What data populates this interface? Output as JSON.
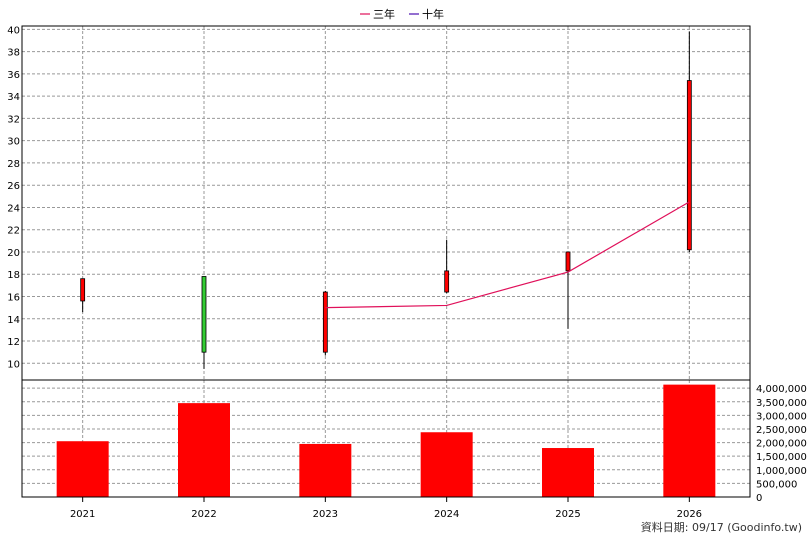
{
  "legend": [
    {
      "label": "三年",
      "color": "#e0105a"
    },
    {
      "label": "十年",
      "color": "#4b0fb0"
    }
  ],
  "footer": "資料日期: 09/17  (Goodinfo.tw)",
  "chart_data": [
    {
      "type": "candlestick",
      "categories": [
        "2021",
        "2022",
        "2023",
        "2024",
        "2025",
        "2026"
      ],
      "ohlc": [
        {
          "year": "2021",
          "open": 15.6,
          "high": 17.6,
          "low": 14.6,
          "close": 17.6
        },
        {
          "year": "2022",
          "open": 17.8,
          "high": 17.8,
          "low": 9.5,
          "close": 11.0
        },
        {
          "year": "2023",
          "open": 11.0,
          "high": 16.5,
          "low": 10.7,
          "close": 16.4
        },
        {
          "year": "2024",
          "open": 16.4,
          "high": 21.1,
          "low": 16.3,
          "close": 18.3
        },
        {
          "year": "2025",
          "open": 18.3,
          "high": 20.0,
          "low": 13.1,
          "close": 20.0
        },
        {
          "year": "2026",
          "open": 20.2,
          "high": 39.8,
          "low": 20.0,
          "close": 35.4
        }
      ],
      "up_color": "#ff0000",
      "down_color": "#33cc33",
      "series": [
        {
          "name": "三年",
          "x": [
            "2023",
            "2024",
            "2025",
            "2026"
          ],
          "values": [
            15.0,
            15.2,
            18.2,
            24.5
          ],
          "color": "#e0105a"
        },
        {
          "name": "十年",
          "x": [],
          "values": [],
          "color": "#4b0fb0"
        }
      ],
      "y_ticks": [
        10,
        12,
        14,
        16,
        18,
        20,
        22,
        24,
        26,
        28,
        30,
        32,
        34,
        36,
        38,
        40
      ],
      "ylim": [
        8.5,
        40.3
      ],
      "grid": true,
      "legend_position": "top-center"
    },
    {
      "type": "bar",
      "categories": [
        "2021",
        "2022",
        "2023",
        "2024",
        "2025",
        "2026"
      ],
      "values": [
        2050000,
        3450000,
        1950000,
        2380000,
        1800000,
        4130000
      ],
      "color": "#ff0000",
      "y_ticks": [
        0,
        500000,
        1000000,
        1500000,
        2000000,
        2500000,
        3000000,
        3500000,
        4000000
      ],
      "y_tick_labels": [
        "0",
        "500,000",
        "1,000,000",
        "1,500,000",
        "2,000,000",
        "2,500,000",
        "3,000,000",
        "3,500,000",
        "4,000,000"
      ],
      "ylim": [
        0,
        4300000
      ],
      "grid": true,
      "y_axis_side": "right"
    }
  ]
}
